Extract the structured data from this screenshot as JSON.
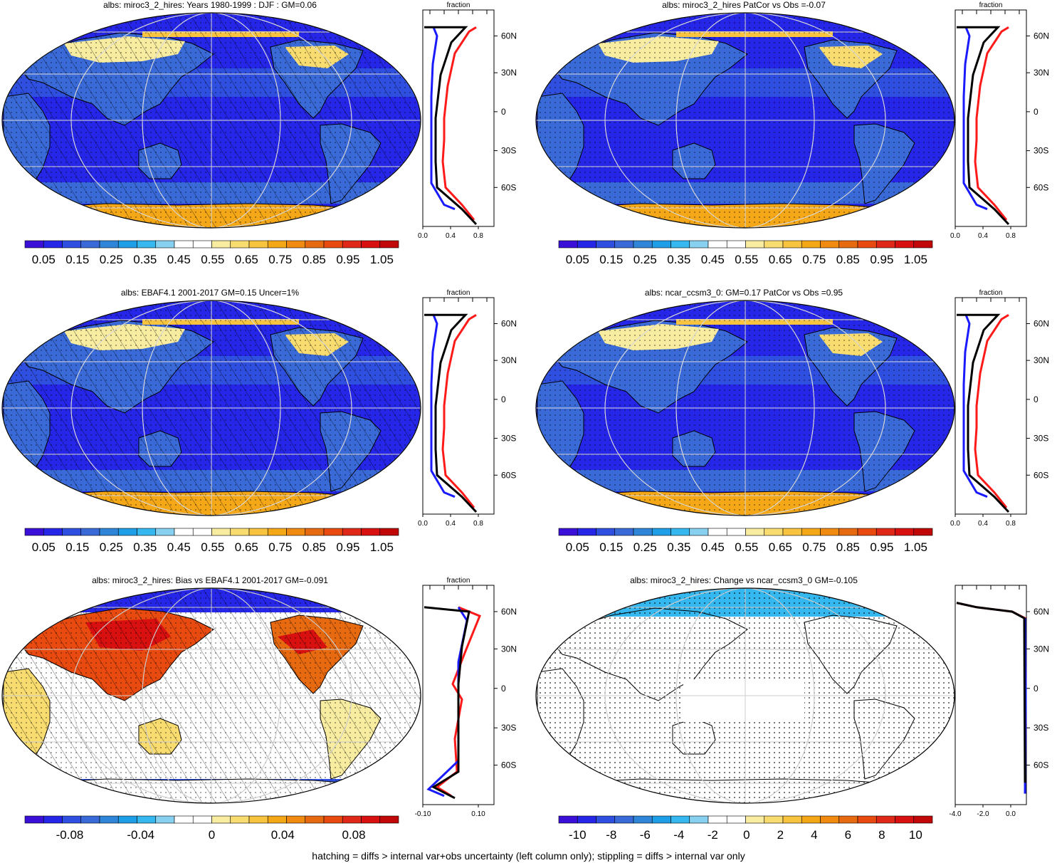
{
  "panels": [
    {
      "title": "albs: miroc3_2_hires: Years 1980-1999 : DJF : GM=0.06",
      "kind": "abs",
      "hatch": true,
      "profile_xticks": [
        "0.0",
        "0.4",
        "0.8"
      ],
      "profile_label": "fraction",
      "lat_labels": [
        "60N",
        "30N",
        "0",
        "30S",
        "60S"
      ],
      "colorbar_labels": [
        "0.05",
        "0.15",
        "0.25",
        "0.35",
        "0.45",
        "0.55",
        "0.65",
        "0.75",
        "0.85",
        "0.95",
        "1.05"
      ]
    },
    {
      "title": "albs: miroc3_2_hires PatCor vs Obs =-0.07",
      "kind": "abs",
      "hatch": false,
      "profile_xticks": [
        "0.0",
        "0.4",
        "0.8"
      ],
      "profile_label": "fraction",
      "lat_labels": [
        "60N",
        "30N",
        "0",
        "30S",
        "60S"
      ],
      "colorbar_labels": [
        "0.05",
        "0.15",
        "0.25",
        "0.35",
        "0.45",
        "0.55",
        "0.65",
        "0.75",
        "0.85",
        "0.95",
        "1.05"
      ]
    },
    {
      "title": "albs: EBAF4.1 2001-2017 GM=0.15 Uncer=1%",
      "kind": "abs",
      "hatch": true,
      "profile_xticks": [
        "0.0",
        "0.4",
        "0.8"
      ],
      "profile_label": "fraction",
      "lat_labels": [
        "60N",
        "30N",
        "0",
        "30S",
        "60S"
      ],
      "colorbar_labels": [
        "0.05",
        "0.15",
        "0.25",
        "0.35",
        "0.45",
        "0.55",
        "0.65",
        "0.75",
        "0.85",
        "0.95",
        "1.05"
      ]
    },
    {
      "title": "albs: ncar_ccsm3_0: GM=0.17 PatCor vs Obs =0.95",
      "kind": "abs",
      "hatch": false,
      "profile_xticks": [
        "0.0",
        "0.4",
        "0.8"
      ],
      "profile_label": "fraction",
      "lat_labels": [
        "60N",
        "30N",
        "0",
        "30S",
        "60S"
      ],
      "colorbar_labels": [
        "0.05",
        "0.15",
        "0.25",
        "0.35",
        "0.45",
        "0.55",
        "0.65",
        "0.75",
        "0.85",
        "0.95",
        "1.05"
      ]
    },
    {
      "title": "albs: miroc3_2_hires: Bias vs EBAF4.1 2001-2017 GM=-0.091",
      "kind": "bias",
      "hatch": true,
      "profile_xticks": [
        "-0.10",
        "0.10"
      ],
      "profile_label": "fraction",
      "lat_labels": [
        "60N",
        "30N",
        "0",
        "30S",
        "60S"
      ],
      "colorbar_labels": [
        "-0.08",
        "-0.04",
        "0",
        "0.04",
        "0.08"
      ]
    },
    {
      "title": "albs: miroc3_2_hires: Change vs ncar_ccsm3_0 GM=-0.105",
      "kind": "change",
      "hatch": false,
      "profile_xticks": [
        "-4.0",
        "-2.0",
        "0.0"
      ],
      "profile_label": "",
      "lat_labels": [
        "60N",
        "30N",
        "0",
        "30S",
        "60S"
      ],
      "colorbar_labels": [
        "-10",
        "-8",
        "-6",
        "-4",
        "-2",
        "0",
        "2",
        "4",
        "6",
        "8",
        "10"
      ]
    }
  ],
  "colors": {
    "seq": [
      "#3a10d8",
      "#2626e8",
      "#2f4fe0",
      "#3a6ad8",
      "#2f86d8",
      "#1f9ee8",
      "#35b8f0",
      "#88d0f0",
      "#ffffff",
      "#ffffff",
      "#f8eca0",
      "#f8dc70",
      "#f8c440",
      "#f4a818",
      "#f08a10",
      "#e86a10",
      "#e84a10",
      "#e02818",
      "#d81010",
      "#c00808"
    ],
    "profile_red": "#ff1a1a",
    "profile_blue": "#1a1aff",
    "profile_black": "#000000"
  },
  "footer": "hatching = diffs > internal var+obs uncertainty (left column only); stippling = diffs > internal var only"
}
